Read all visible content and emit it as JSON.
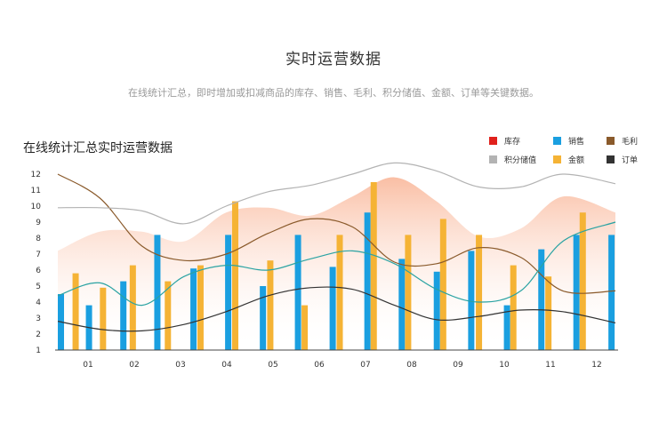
{
  "header": {
    "title": "实时运营数据",
    "subtitle": "在线统计汇总，即时增加或扣减商品的库存、销售、毛利、积分储值、金额、订单等关键数据。"
  },
  "chart_data": {
    "type": "bar",
    "title": "在线统计汇总实时运营数据",
    "categories": [
      "01",
      "02",
      "03",
      "04",
      "05",
      "06",
      "07",
      "08",
      "09",
      "10",
      "11",
      "12"
    ],
    "y_ticks": [
      1,
      2,
      3,
      4,
      5,
      6,
      7,
      8,
      9,
      10,
      11,
      12
    ],
    "ylim": [
      1,
      12
    ],
    "legend_position": "top-right",
    "legend": [
      {
        "name": "库存",
        "color": "#e0211c"
      },
      {
        "name": "销售",
        "color": "#1a9fe0"
      },
      {
        "name": "毛利",
        "color": "#8a5a2b"
      },
      {
        "name": "积分储值",
        "color": "#b3b3b3"
      },
      {
        "name": "金额",
        "color": "#f5b335"
      },
      {
        "name": "订单",
        "color": "#333333"
      }
    ],
    "bar_series": [
      {
        "name": "销售",
        "color": "#1a9fe0",
        "values": [
          4.5,
          3.8,
          5.3,
          8.2,
          6.1,
          8.2,
          5.0,
          8.2,
          6.2,
          9.6,
          6.7,
          5.9,
          7.2,
          3.8,
          7.3,
          8.2,
          8.2
        ]
      },
      {
        "name": "金额",
        "color": "#f5b335",
        "values": [
          5.8,
          4.9,
          6.3,
          5.3,
          6.3,
          10.3,
          6.6,
          3.8,
          8.2,
          11.5,
          8.2,
          9.2,
          8.2,
          6.3,
          5.6,
          9.6
        ]
      }
    ],
    "bar_x_positions": {
      "销售": [
        0.0,
        0.8,
        1.78,
        2.75,
        3.78,
        4.77,
        5.76,
        6.76,
        7.75,
        8.74,
        9.72,
        10.72,
        11.7,
        12.72,
        13.7,
        14.7,
        15.7
      ],
      "金额": [
        0.42,
        1.2,
        2.05,
        3.05,
        3.98,
        4.97,
        5.97,
        6.95,
        7.95,
        8.92,
        9.9,
        10.9,
        11.92,
        12.9,
        13.9,
        14.88
      ]
    },
    "line_series": [
      {
        "name": "毛利",
        "color": "#8a5a2b",
        "values": [
          12,
          10.5,
          7.5,
          6.6,
          7.0,
          8.3,
          9.2,
          8.7,
          6.5,
          6.4,
          7.4,
          6.8,
          4.7,
          4.7
        ]
      },
      {
        "name": "积分储值",
        "color": "#b3b3b3",
        "values": [
          9.9,
          9.9,
          9.7,
          8.9,
          10.0,
          10.9,
          11.3,
          12.0,
          12.7,
          12.2,
          11.2,
          11.2,
          12.0,
          11.4
        ]
      },
      {
        "name": "订单",
        "color": "#333333",
        "values": [
          2.8,
          2.3,
          2.2,
          2.6,
          3.4,
          4.4,
          4.9,
          4.8,
          3.8,
          2.9,
          3.1,
          3.5,
          3.4,
          2.7
        ]
      },
      {
        "name": "teal",
        "color": "#2aa3a3",
        "values": [
          4.4,
          5.2,
          3.8,
          5.6,
          6.3,
          6.0,
          6.7,
          7.2,
          6.4,
          4.8,
          4.0,
          4.7,
          7.8,
          9.0
        ]
      }
    ],
    "line_x": [
      0,
      1.2,
      2.4,
      3.6,
      4.8,
      6.0,
      7.2,
      8.4,
      9.6,
      10.8,
      12.0,
      13.2,
      14.4,
      15.9
    ],
    "area_series": {
      "color_top": "#f9b394",
      "values": [
        7.2,
        8.4,
        8.4,
        7.8,
        9.6,
        9.9,
        9.4,
        10.6,
        11.8,
        10.3,
        8.1,
        8.6,
        10.6,
        9.6
      ]
    }
  }
}
